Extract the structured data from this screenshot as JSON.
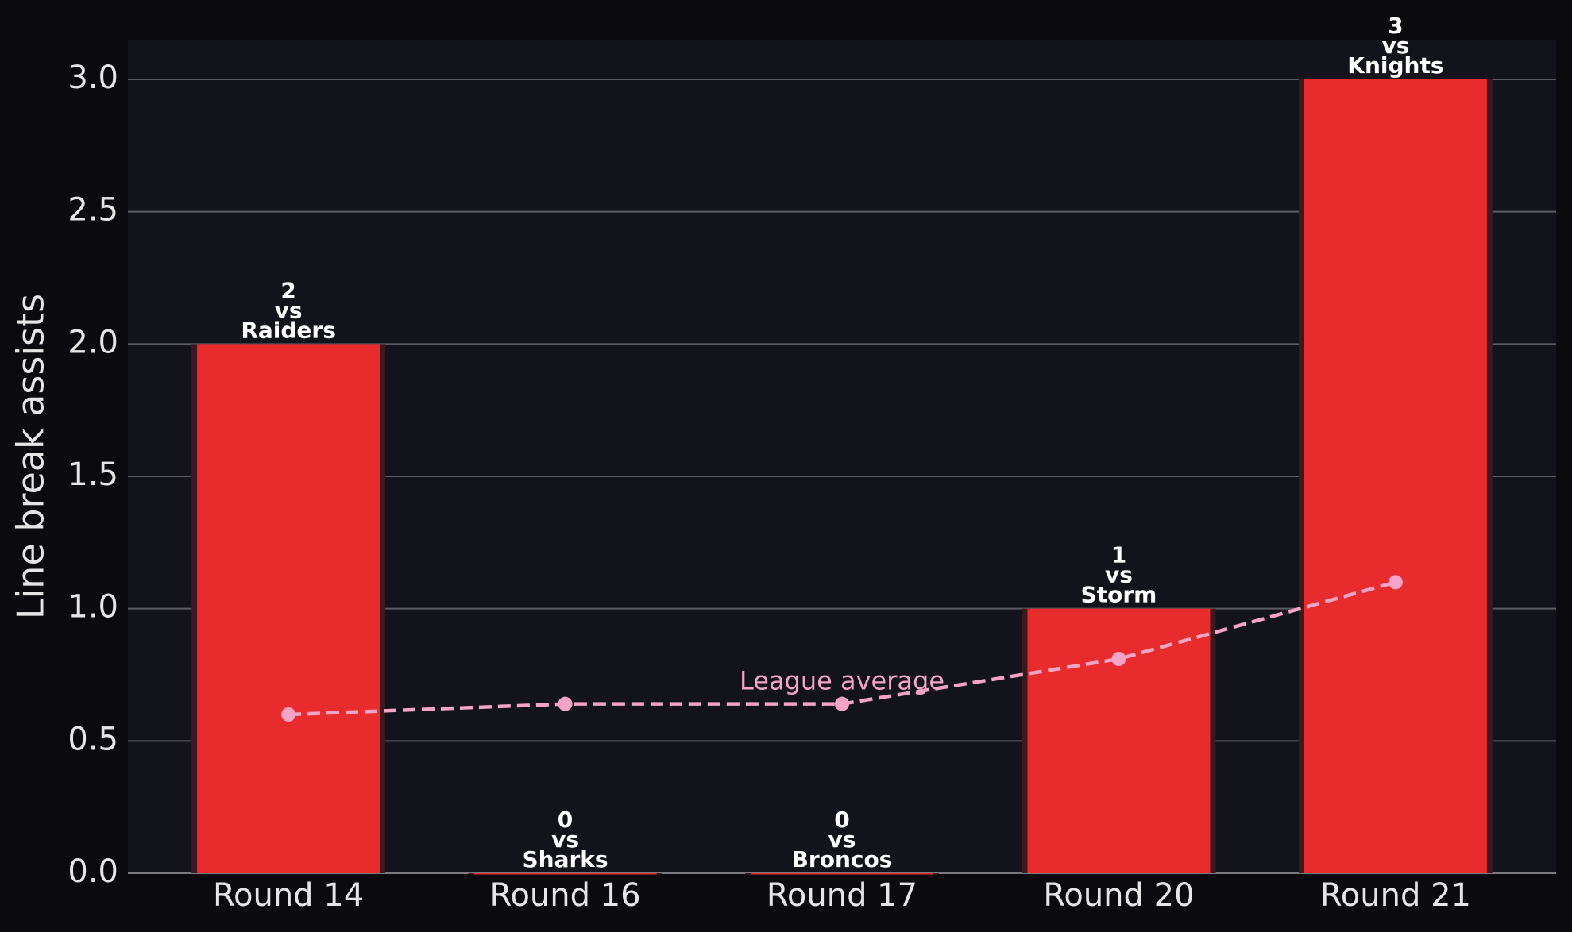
{
  "chart_data": {
    "type": "bar",
    "ylabel": "Line break assists",
    "categories": [
      "Round 14",
      "Round 16",
      "Round 17",
      "Round 20",
      "Round 21"
    ],
    "values": [
      2,
      0,
      0,
      1,
      3
    ],
    "value_labels": [
      "2\nvs\nRaiders",
      "0\nvs\nSharks",
      "0\nvs\nBroncos",
      "1\nvs\nStorm",
      "3\nvs\nKnights"
    ],
    "color": "#e82c2e",
    "series": [
      {
        "name": "League average",
        "color": "#f5a3c7",
        "values": [
          0.6,
          0.64,
          0.64,
          0.81,
          1.1
        ]
      }
    ],
    "ylim": [
      0,
      3.15
    ],
    "yticks": [
      {
        "value": 0,
        "label": "0.0"
      },
      0.5,
      {
        "value": 1,
        "label": "1.0"
      },
      1.5,
      {
        "value": 2,
        "label": "2.0"
      },
      2.5,
      {
        "value": 3,
        "label": "3.0"
      }
    ],
    "grid": true
  }
}
